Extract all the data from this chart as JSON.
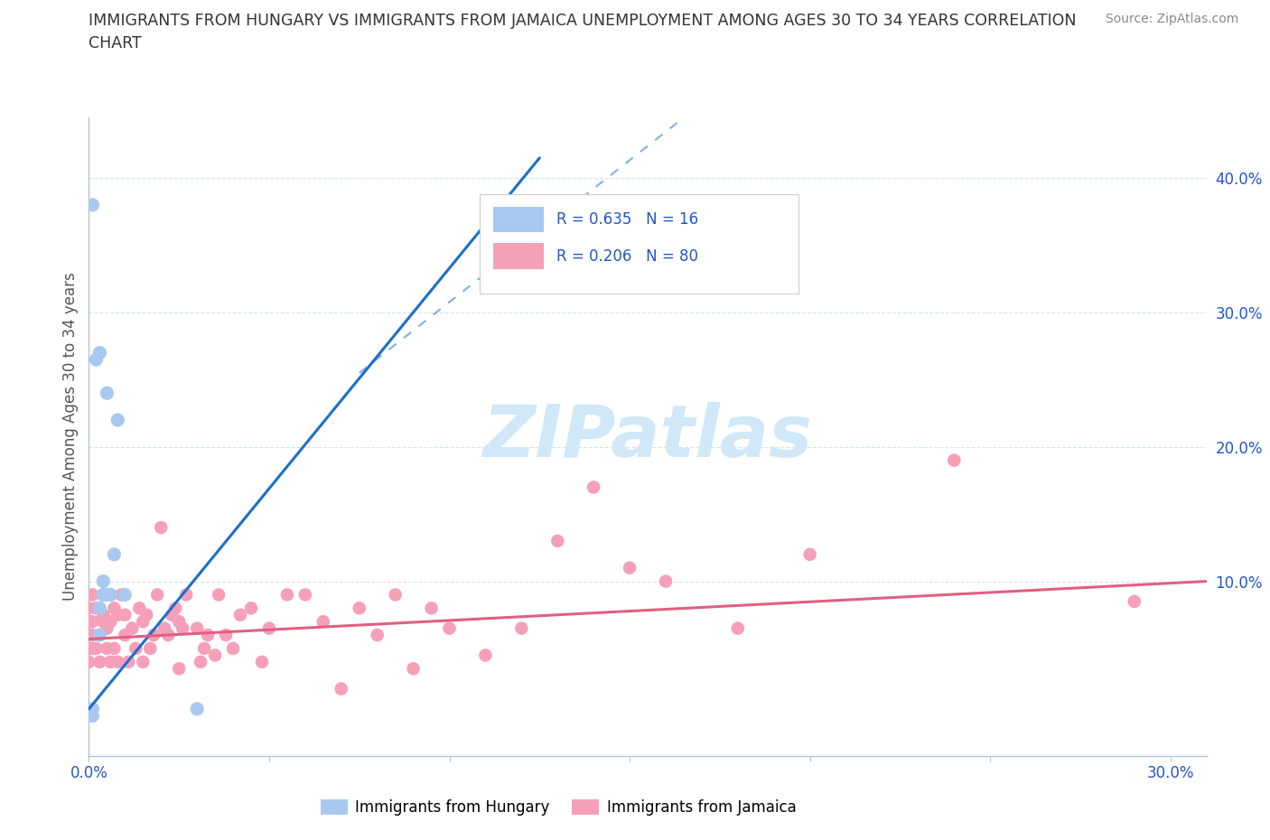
{
  "title_line1": "IMMIGRANTS FROM HUNGARY VS IMMIGRANTS FROM JAMAICA UNEMPLOYMENT AMONG AGES 30 TO 34 YEARS CORRELATION",
  "title_line2": "CHART",
  "source": "Source: ZipAtlas.com",
  "ylabel": "Unemployment Among Ages 30 to 34 years",
  "xlim": [
    0.0,
    0.31
  ],
  "ylim": [
    -0.03,
    0.445
  ],
  "x_tick_positions": [
    0.0,
    0.05,
    0.1,
    0.15,
    0.2,
    0.25,
    0.3
  ],
  "x_tick_labels": [
    "0.0%",
    "",
    "",
    "",
    "",
    "",
    "30.0%"
  ],
  "y_ticks_right": [
    0.1,
    0.2,
    0.3,
    0.4
  ],
  "y_tick_labels_right": [
    "10.0%",
    "20.0%",
    "30.0%",
    "40.0%"
  ],
  "hungary_color": "#a8c8f0",
  "jamaica_color": "#f5a0b8",
  "hungary_line_color": "#1a6fcc",
  "jamaica_line_color": "#e06080",
  "grid_color": "#d0e4f0",
  "background_color": "#ffffff",
  "axis_color": "#b0c4d8",
  "legend_R_hungary": "R = 0.635",
  "legend_N_hungary": "N = 16",
  "legend_R_jamaica": "R = 0.206",
  "legend_N_jamaica": "N = 80",
  "legend_text_color_blue": "#2255cc",
  "legend_text_color_dark": "#333333",
  "watermark": "ZIPatlas",
  "watermark_color": "#d0e8f8",
  "title_color": "#333333",
  "source_color": "#888888",
  "ylabel_color": "#555555",
  "hungary_scatter": {
    "x": [
      0.001,
      0.001,
      0.002,
      0.003,
      0.003,
      0.003,
      0.004,
      0.004,
      0.005,
      0.005,
      0.006,
      0.007,
      0.008,
      0.01,
      0.03,
      0.001
    ],
    "y": [
      0.005,
      0.38,
      0.265,
      0.06,
      0.08,
      0.27,
      0.09,
      0.1,
      0.24,
      0.09,
      0.09,
      0.12,
      0.22,
      0.09,
      0.005,
      0.0
    ]
  },
  "jamaica_scatter": {
    "x": [
      0.0,
      0.0,
      0.0,
      0.0,
      0.0,
      0.0,
      0.0,
      0.001,
      0.001,
      0.001,
      0.001,
      0.002,
      0.002,
      0.003,
      0.003,
      0.004,
      0.004,
      0.005,
      0.005,
      0.005,
      0.006,
      0.006,
      0.007,
      0.007,
      0.008,
      0.008,
      0.009,
      0.01,
      0.01,
      0.011,
      0.012,
      0.013,
      0.014,
      0.015,
      0.015,
      0.016,
      0.017,
      0.018,
      0.019,
      0.02,
      0.021,
      0.022,
      0.023,
      0.024,
      0.025,
      0.025,
      0.026,
      0.027,
      0.03,
      0.031,
      0.032,
      0.033,
      0.035,
      0.036,
      0.038,
      0.04,
      0.042,
      0.045,
      0.048,
      0.05,
      0.055,
      0.06,
      0.065,
      0.07,
      0.075,
      0.08,
      0.085,
      0.09,
      0.095,
      0.1,
      0.11,
      0.12,
      0.13,
      0.14,
      0.15,
      0.16,
      0.18,
      0.2,
      0.24,
      0.29
    ],
    "y": [
      0.04,
      0.05,
      0.06,
      0.06,
      0.07,
      0.07,
      0.08,
      0.05,
      0.06,
      0.07,
      0.09,
      0.05,
      0.08,
      0.04,
      0.06,
      0.07,
      0.075,
      0.05,
      0.065,
      0.09,
      0.04,
      0.07,
      0.05,
      0.08,
      0.04,
      0.075,
      0.09,
      0.06,
      0.075,
      0.04,
      0.065,
      0.05,
      0.08,
      0.04,
      0.07,
      0.075,
      0.05,
      0.06,
      0.09,
      0.14,
      0.065,
      0.06,
      0.075,
      0.08,
      0.035,
      0.07,
      0.065,
      0.09,
      0.065,
      0.04,
      0.05,
      0.06,
      0.045,
      0.09,
      0.06,
      0.05,
      0.075,
      0.08,
      0.04,
      0.065,
      0.09,
      0.09,
      0.07,
      0.02,
      0.08,
      0.06,
      0.09,
      0.035,
      0.08,
      0.065,
      0.045,
      0.065,
      0.13,
      0.17,
      0.11,
      0.1,
      0.065,
      0.12,
      0.19,
      0.085
    ]
  },
  "hungary_trendline": {
    "x": [
      0.0,
      0.125
    ],
    "y": [
      0.005,
      0.415
    ]
  },
  "hungary_trendline_dash": {
    "x": [
      0.075,
      0.165
    ],
    "y": [
      0.255,
      0.445
    ]
  },
  "jamaica_trendline": {
    "x": [
      0.0,
      0.31
    ],
    "y": [
      0.057,
      0.1
    ]
  }
}
